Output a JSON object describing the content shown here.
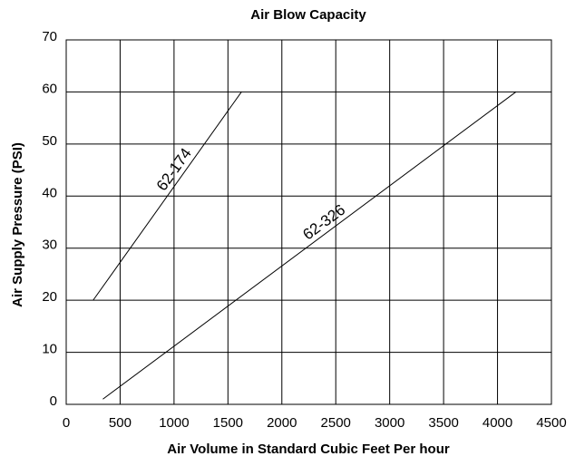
{
  "chart_data": {
    "type": "line",
    "title": "Air Blow Capacity",
    "x_label": "Air Volume in Standard Cubic Feet Per hour",
    "y_label": "Air Supply Pressure  (PSI)",
    "series": [
      {
        "name": "62-174",
        "color": "#000000",
        "x": [
          250,
          1625
        ],
        "values": [
          20,
          60
        ]
      },
      {
        "name": "62-326",
        "color": "#000000",
        "x": [
          340,
          4170
        ],
        "values": [
          1,
          60
        ]
      }
    ],
    "xlim": [
      0,
      4500
    ],
    "xticks": [
      0,
      500,
      1000,
      1500,
      2000,
      2500,
      3000,
      3500,
      4000,
      4500
    ],
    "ylim": [
      0,
      70
    ],
    "yticks": [
      0,
      10,
      20,
      30,
      40,
      50,
      60,
      70
    ],
    "grid": true
  }
}
